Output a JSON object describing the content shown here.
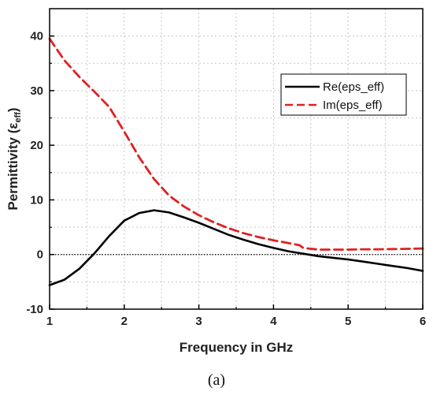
{
  "chart_data": {
    "type": "line",
    "xlabel": "Frequency in GHz",
    "ylabel_main": "Permittivity (ε",
    "ylabel_sub": "eff",
    "ylabel_close": ")",
    "xlim": [
      1,
      6
    ],
    "ylim": [
      -10,
      45
    ],
    "xticks": [
      1,
      2,
      3,
      4,
      5,
      6
    ],
    "yticks": [
      -10,
      0,
      10,
      20,
      30,
      40
    ],
    "grid": true,
    "zero_line": true,
    "legend_position": "top-right",
    "series": [
      {
        "name": "Re(eps_eff)",
        "color": "#000000",
        "style": "solid",
        "x": [
          1.0,
          1.2,
          1.4,
          1.6,
          1.8,
          2.0,
          2.2,
          2.4,
          2.6,
          2.8,
          3.0,
          3.2,
          3.4,
          3.6,
          3.8,
          4.0,
          4.2,
          4.4,
          4.6,
          4.8,
          5.0,
          5.2,
          5.4,
          5.6,
          5.8,
          6.0
        ],
        "y": [
          -5.6,
          -4.6,
          -2.6,
          0.2,
          3.4,
          6.2,
          7.6,
          8.1,
          7.7,
          6.8,
          5.8,
          4.7,
          3.6,
          2.7,
          1.9,
          1.2,
          0.6,
          0.15,
          -0.3,
          -0.6,
          -0.9,
          -1.3,
          -1.7,
          -2.1,
          -2.5,
          -3.0
        ]
      },
      {
        "name": "Im(eps_eff)",
        "color": "#e02020",
        "style": "dashed",
        "x": [
          1.0,
          1.2,
          1.4,
          1.6,
          1.8,
          2.0,
          2.2,
          2.4,
          2.6,
          2.8,
          3.0,
          3.2,
          3.4,
          3.6,
          3.8,
          4.0,
          4.2,
          4.35,
          4.4,
          4.6,
          4.8,
          5.0,
          5.2,
          5.4,
          5.6,
          5.8,
          6.0
        ],
        "y": [
          39.5,
          35.5,
          32.5,
          29.8,
          27.0,
          22.5,
          17.8,
          13.8,
          10.8,
          8.8,
          7.2,
          5.9,
          4.8,
          3.9,
          3.2,
          2.6,
          2.1,
          1.7,
          1.2,
          0.9,
          0.9,
          0.9,
          0.95,
          0.95,
          1.0,
          1.05,
          1.1
        ]
      }
    ]
  },
  "caption": "(a)"
}
